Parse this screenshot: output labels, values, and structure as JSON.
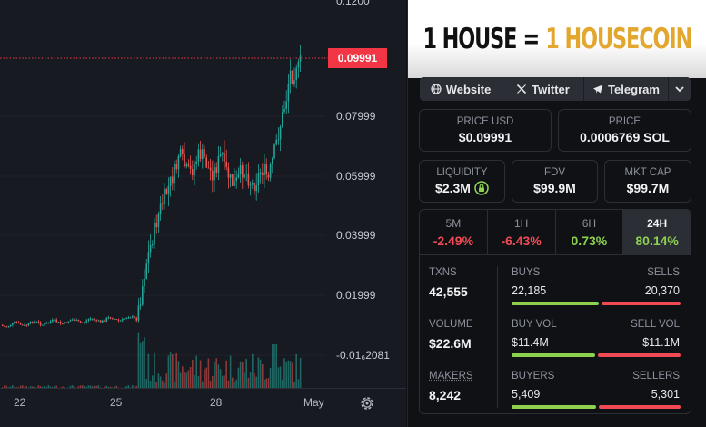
{
  "chart": {
    "price_levels": [
      "0.07999",
      "0.05999",
      "0.03999",
      "0.01999",
      "-0.01₆2081"
    ],
    "top_label_partial": "0.1200",
    "current_price": "0.09991",
    "x_labels": [
      "22",
      "25",
      "28",
      "May"
    ],
    "colors": {
      "up": "#26a69a",
      "down": "#ef5350",
      "current_line": "#f23645"
    }
  },
  "banner": {
    "part_a": "1 HOUSE",
    "equals": "=",
    "part_b": "1 HOUSECOIN"
  },
  "links": {
    "website": "Website",
    "x": "Twitter",
    "telegram": "Telegram"
  },
  "stats": {
    "price_usd_label": "PRICE USD",
    "price_usd": "$0.09991",
    "price_label": "PRICE",
    "price_sol": "0.0006769 SOL",
    "liquidity_label": "LIQUIDITY",
    "liquidity": "$2.3M",
    "fdv_label": "FDV",
    "fdv": "$99.9M",
    "mktcap_label": "MKT CAP",
    "mktcap": "$99.7M"
  },
  "timeframes": [
    {
      "label": "5M",
      "value": "-2.49%"
    },
    {
      "label": "1H",
      "value": "-6.43%"
    },
    {
      "label": "6H",
      "value": "0.73%"
    },
    {
      "label": "24H",
      "value": "80.14%"
    }
  ],
  "metrics": {
    "txns_label": "TXNS",
    "txns": "42,555",
    "buys_label": "BUYS",
    "buys": "22,185",
    "sells_label": "SELLS",
    "sells": "20,370",
    "volume_label": "VOLUME",
    "volume": "$22.6M",
    "buy_vol_label": "BUY VOL",
    "buy_vol": "$11.4M",
    "sell_vol_label": "SELL VOL",
    "sell_vol": "$11.1M",
    "makers_label": "MAKERS",
    "makers": "8,242",
    "buyers_label": "BUYERS",
    "buyers": "5,409",
    "sellers_label": "SELLERS",
    "sellers": "5,301"
  }
}
